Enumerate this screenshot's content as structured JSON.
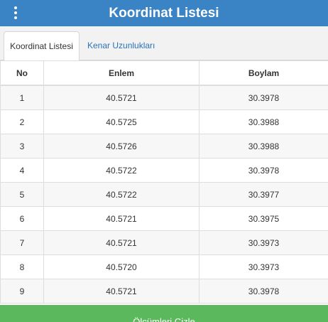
{
  "header": {
    "title": "Koordinat Listesi",
    "menu_icon": "more-vert-icon"
  },
  "tabs": [
    {
      "label": "Koordinat Listesi",
      "active": true
    },
    {
      "label": "Kenar Uzunlukları",
      "active": false
    }
  ],
  "table": {
    "columns": [
      "No",
      "Enlem",
      "Boylam"
    ],
    "rows": [
      [
        "1",
        "40.5721",
        "30.3978"
      ],
      [
        "2",
        "40.5725",
        "30.3988"
      ],
      [
        "3",
        "40.5726",
        "30.3988"
      ],
      [
        "4",
        "40.5722",
        "30.3978"
      ],
      [
        "5",
        "40.5722",
        "30.3977"
      ],
      [
        "6",
        "40.5721",
        "30.3975"
      ],
      [
        "7",
        "40.5721",
        "30.3973"
      ],
      [
        "8",
        "40.5720",
        "30.3973"
      ],
      [
        "9",
        "40.5721",
        "30.3978"
      ]
    ]
  },
  "footer": {
    "button_label": "Ölçümleri Çizle"
  },
  "colors": {
    "header": "#3a83c4",
    "footer_button": "#5cb85c",
    "tab_link": "#2a73b5"
  }
}
